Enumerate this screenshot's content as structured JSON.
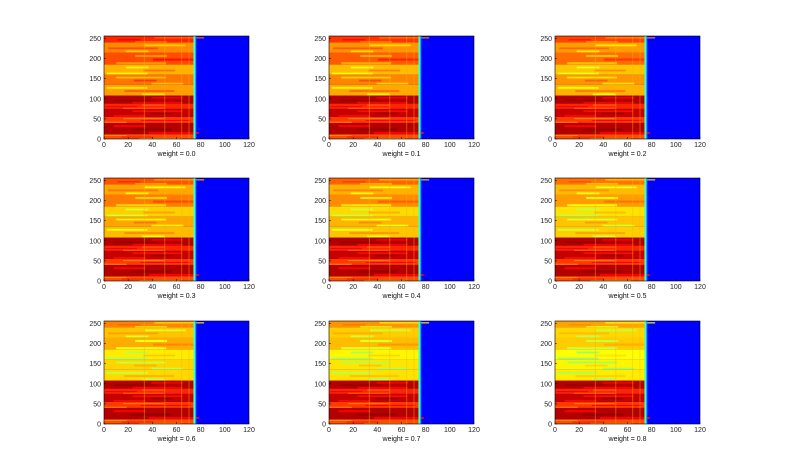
{
  "chart_data": {
    "type": "heatmap",
    "colormap": "jet",
    "layout": "3x3 grid of panels",
    "x_range": [
      0,
      120
    ],
    "y_range": [
      0,
      256
    ],
    "x_ticks": [
      0,
      20,
      40,
      60,
      80,
      100,
      120
    ],
    "y_ticks": [
      0,
      50,
      100,
      150,
      200,
      250
    ],
    "active_region_x": [
      0,
      75
    ],
    "rows": [
      {
        "y_from": 0,
        "y_to": 12,
        "level": 0.8
      },
      {
        "y_from": 12,
        "y_to": 40,
        "level": 0.95
      },
      {
        "y_from": 40,
        "y_to": 55,
        "level": 0.82
      },
      {
        "y_from": 55,
        "y_to": 75,
        "level": 0.93
      },
      {
        "y_from": 75,
        "y_to": 88,
        "level": 0.84
      },
      {
        "y_from": 88,
        "y_to": 108,
        "level": 0.95
      },
      {
        "y_from": 108,
        "y_to": 135,
        "level": 0.72
      },
      {
        "y_from": 135,
        "y_to": 160,
        "level": 0.76
      },
      {
        "y_from": 160,
        "y_to": 185,
        "level": 0.7
      },
      {
        "y_from": 185,
        "y_to": 215,
        "level": 0.8
      },
      {
        "y_from": 215,
        "y_to": 240,
        "level": 0.74
      },
      {
        "y_from": 240,
        "y_to": 256,
        "level": 0.84
      }
    ],
    "panels": [
      {
        "xlabel": "weight = 0.0",
        "weight": 0.0
      },
      {
        "xlabel": "weight = 0.1",
        "weight": 0.1
      },
      {
        "xlabel": "weight = 0.2",
        "weight": 0.2
      },
      {
        "xlabel": "weight = 0.3",
        "weight": 0.3
      },
      {
        "xlabel": "weight = 0.4",
        "weight": 0.4
      },
      {
        "xlabel": "weight = 0.5",
        "weight": 0.5
      },
      {
        "xlabel": "weight = 0.6",
        "weight": 0.6
      },
      {
        "xlabel": "weight = 0.7",
        "weight": 0.7
      },
      {
        "xlabel": "weight = 0.8",
        "weight": 0.8
      }
    ]
  }
}
